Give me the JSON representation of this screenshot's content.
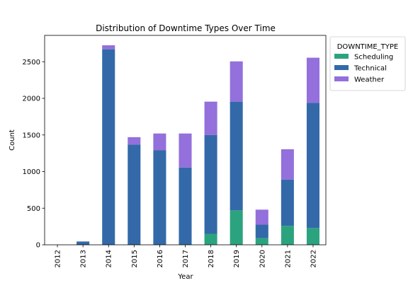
{
  "chart_data": {
    "type": "bar",
    "stacked": true,
    "title": "Distribution of Downtime Types Over Time",
    "xlabel": "Year",
    "ylabel": "Count",
    "categories": [
      "2012",
      "2013",
      "2014",
      "2015",
      "2016",
      "2017",
      "2018",
      "2019",
      "2020",
      "2021",
      "2022"
    ],
    "yticks": [
      0,
      500,
      1000,
      1500,
      2000,
      2500
    ],
    "ylim": [
      0,
      2860
    ],
    "legend": {
      "title": "DOWNTIME_TYPE",
      "placement": "outside-right"
    },
    "series": [
      {
        "name": "Scheduling",
        "color": "#2ca37f",
        "values": [
          0,
          0,
          0,
          0,
          0,
          0,
          150,
          470,
          90,
          260,
          230
        ]
      },
      {
        "name": "Technical",
        "color": "#3369a8",
        "values": [
          0,
          45,
          2670,
          1370,
          1290,
          1055,
          1350,
          1485,
          185,
          630,
          1710
        ]
      },
      {
        "name": "Weather",
        "color": "#9370db",
        "values": [
          0,
          0,
          55,
          100,
          230,
          465,
          455,
          550,
          205,
          415,
          615
        ]
      }
    ]
  }
}
